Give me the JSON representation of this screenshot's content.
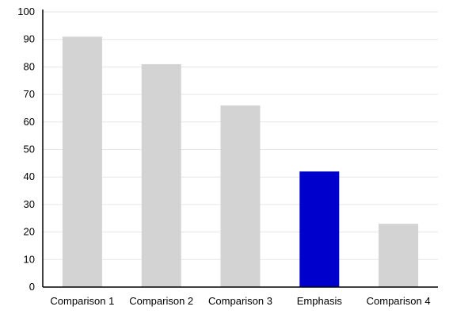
{
  "chart_data": {
    "type": "bar",
    "title": "",
    "xlabel": "",
    "ylabel": "",
    "categories": [
      "Comparison 1",
      "Comparison 2",
      "Comparison 3",
      "Emphasis",
      "Comparison 4"
    ],
    "values": [
      91,
      81,
      66,
      42,
      23
    ],
    "ylim": [
      0,
      100
    ],
    "yticks": [
      "0",
      "10",
      "20",
      "30",
      "40",
      "50",
      "60",
      "70",
      "80",
      "90",
      "100"
    ],
    "grid": true,
    "legend": "none",
    "colors": {
      "default_bar": "#d3d3d3",
      "emphasis_bar": "#0000cc",
      "grid": "#e6e6e6",
      "axis": "#000000"
    },
    "emphasis_index": 3
  }
}
